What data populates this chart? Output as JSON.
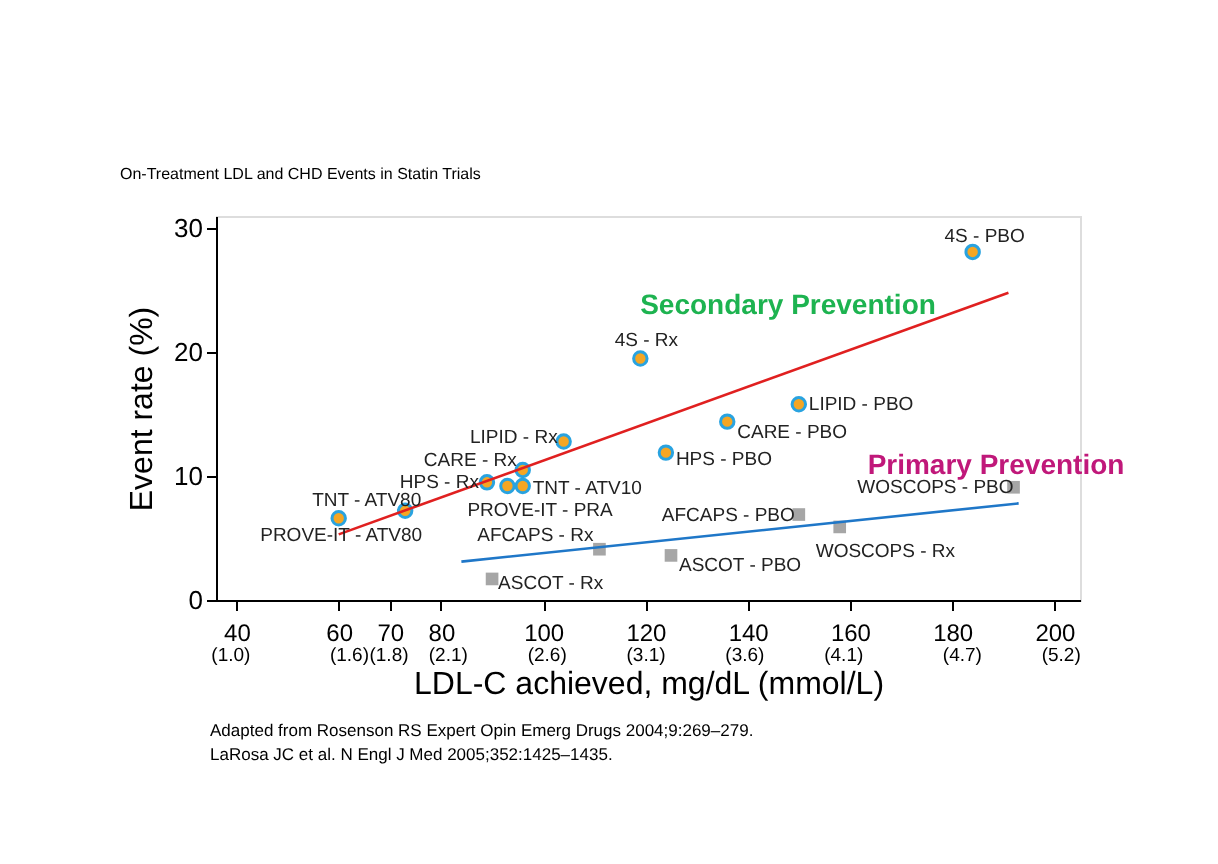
{
  "chart_data": {
    "type": "scatter",
    "title": "On-Treatment LDL and CHD Events in Statin Trials",
    "xlabel": "LDL-C achieved, mg/dL (mmol/L)",
    "ylabel": "Event rate (%)",
    "xlim": [
      36,
      205
    ],
    "ylim": [
      0,
      31
    ],
    "xticks": [
      40,
      60,
      70,
      80,
      100,
      120,
      140,
      160,
      180,
      200
    ],
    "x2lim": [
      0.93,
      5.3
    ],
    "x2ticks": [
      {
        "value": 1.0,
        "label": "(1.0)"
      },
      {
        "value": 1.6,
        "label": "(1.6)"
      },
      {
        "value": 1.8,
        "label": "(1.8)"
      },
      {
        "value": 2.1,
        "label": "(2.1)"
      },
      {
        "value": 2.6,
        "label": "(2.6)"
      },
      {
        "value": 3.1,
        "label": "(3.1)"
      },
      {
        "value": 3.6,
        "label": "(3.6)"
      },
      {
        "value": 4.1,
        "label": "(4.1)"
      },
      {
        "value": 4.7,
        "label": "(4.7)"
      },
      {
        "value": 5.2,
        "label": "(5.2)"
      }
    ],
    "yticks": [
      0,
      10,
      20,
      30
    ],
    "grid": false,
    "series": [
      {
        "marker": "circle",
        "color": "#f5a623",
        "x": [
          60,
          73,
          89,
          93,
          96,
          96,
          104,
          119,
          124,
          136,
          150,
          184
        ],
        "values": [
          6.6,
          7.2,
          9.5,
          9.2,
          9.2,
          10.5,
          12.8,
          19.5,
          11.9,
          14.4,
          15.8,
          28.1
        ]
      },
      {
        "marker": "square",
        "color": "#a6a6a6",
        "x": [
          90,
          111,
          125,
          150,
          158,
          192
        ],
        "values": [
          1.7,
          4.1,
          3.6,
          6.9,
          5.9,
          9.1
        ]
      },
      {
        "type": "line",
        "color": "#e02020",
        "x": [
          60,
          191
        ],
        "values": [
          5.3,
          24.8
        ]
      },
      {
        "type": "line",
        "color": "#1f77c8",
        "x": [
          84,
          193
        ],
        "values": [
          3.1,
          7.8
        ]
      }
    ],
    "annotations": [
      "Secondary Prevention",
      "Primary Prevention",
      {
        "text": "TNT - ATV80",
        "x": 60,
        "y": 6.6
      },
      {
        "text": "PROVE-IT - ATV80",
        "x": 73,
        "y": 7.2
      },
      {
        "text": "HPS - Rx",
        "x": 89,
        "y": 9.5
      },
      {
        "text": "PROVE-IT - PRA",
        "x": 93,
        "y": 9.2
      },
      {
        "text": "TNT - ATV10",
        "x": 96,
        "y": 9.2
      },
      {
        "text": "CARE - Rx",
        "x": 96,
        "y": 10.5
      },
      {
        "text": "LIPID - Rx",
        "x": 104,
        "y": 12.8
      },
      {
        "text": "4S - Rx",
        "x": 119,
        "y": 19.5
      },
      {
        "text": "HPS - PBO",
        "x": 124,
        "y": 11.9
      },
      {
        "text": "CARE - PBO",
        "x": 136,
        "y": 14.4
      },
      {
        "text": "LIPID - PBO",
        "x": 150,
        "y": 15.8
      },
      {
        "text": "4S - PBO",
        "x": 184,
        "y": 28.1
      },
      {
        "text": "ASCOT - Rx",
        "x": 90,
        "y": 1.7
      },
      {
        "text": "AFCAPS - Rx",
        "x": 111,
        "y": 4.1
      },
      {
        "text": "ASCOT - PBO",
        "x": 125,
        "y": 3.6
      },
      {
        "text": "AFCAPS - PBO",
        "x": 150,
        "y": 6.9
      },
      {
        "text": "WOSCOPS - Rx",
        "x": 158,
        "y": 5.9
      },
      {
        "text": "WOSCOPS - PBO",
        "x": 192,
        "y": 9.1
      },
      "Adapted from Rosenson RS Expert Opin Emerg Drugs 2004;9:269–279.",
      "LaRosa JC et al. N Engl J Med 2005;352:1425–1435."
    ]
  }
}
